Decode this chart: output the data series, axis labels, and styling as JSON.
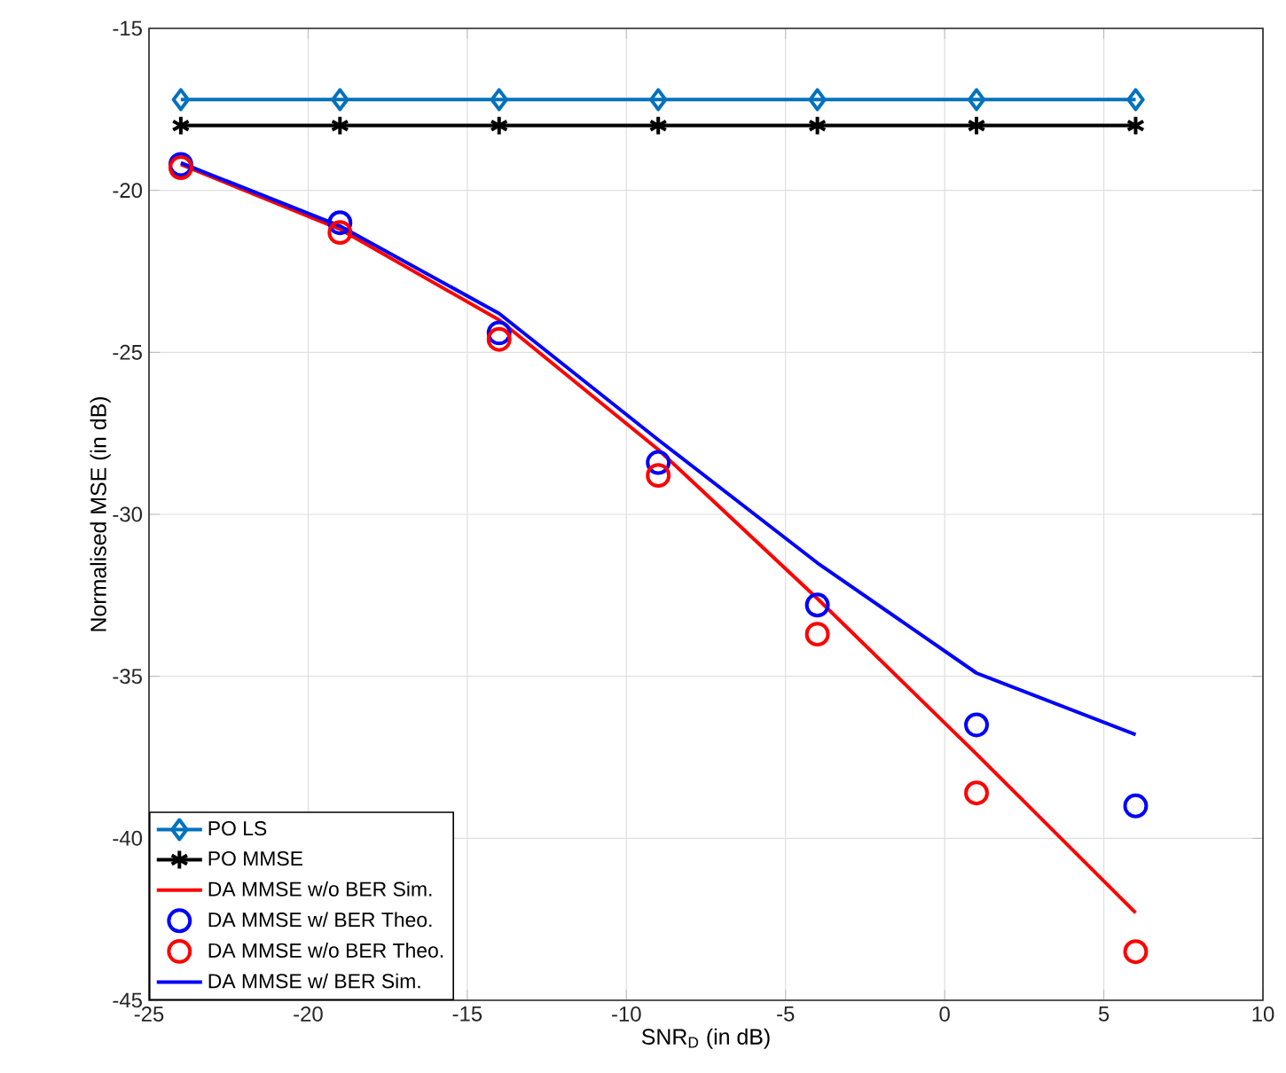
{
  "chart_data": {
    "type": "line",
    "xlabel": "SNR$_{D}$ (in dB)",
    "ylabel": "Normalised MSE (in dB)",
    "x": [
      -24,
      -19,
      -14,
      -9,
      -4,
      1,
      6
    ],
    "xlim": [
      -25,
      10
    ],
    "xticks": [
      -25,
      -20,
      -15,
      -10,
      -5,
      0,
      5,
      10
    ],
    "ylim": [
      -45,
      -15
    ],
    "yticks": [
      -45,
      -40,
      -35,
      -30,
      -25,
      -20,
      -15
    ],
    "grid": true,
    "legend": "bottom left",
    "series": [
      {
        "name": "PO LS",
        "marker": "diamond",
        "color": "#0072bd",
        "values": [
          -17.2,
          -17.2,
          -17.2,
          -17.2,
          -17.2,
          -17.2,
          -17.2
        ]
      },
      {
        "name": "PO MMSE",
        "marker": "cross",
        "color": "#000000",
        "values": [
          -18.0,
          -18.0,
          -18.0,
          -18.0,
          -18.0,
          -18.0,
          -18.0
        ]
      },
      {
        "name": "DA MMSE w/o BER Sim.",
        "marker": "none",
        "color": "#ff0000",
        "values": [
          -19.2,
          -21.2,
          -24.0,
          -28.0,
          -32.6,
          -37.4,
          -42.3
        ]
      },
      {
        "name": "DA MMSE w/ BER Theo.",
        "type": "scatter",
        "marker": "circle",
        "color": "#0000ff",
        "values": [
          -19.2,
          -21.0,
          -24.4,
          -28.4,
          -32.8,
          -36.5,
          -39.0
        ]
      },
      {
        "name": "DA MMSE w/o BER Theo.",
        "type": "scatter",
        "marker": "circle",
        "color": "#ff0000",
        "values": [
          -19.3,
          -21.3,
          -24.6,
          -28.8,
          -33.7,
          -38.6,
          -43.5
        ]
      },
      {
        "name": "DA MMSE w/ BER Sim.",
        "marker": "none",
        "color": "#0000ff",
        "values": [
          -19.15,
          -21.1,
          -23.8,
          -27.7,
          -31.5,
          -34.9,
          -36.8
        ]
      }
    ]
  }
}
